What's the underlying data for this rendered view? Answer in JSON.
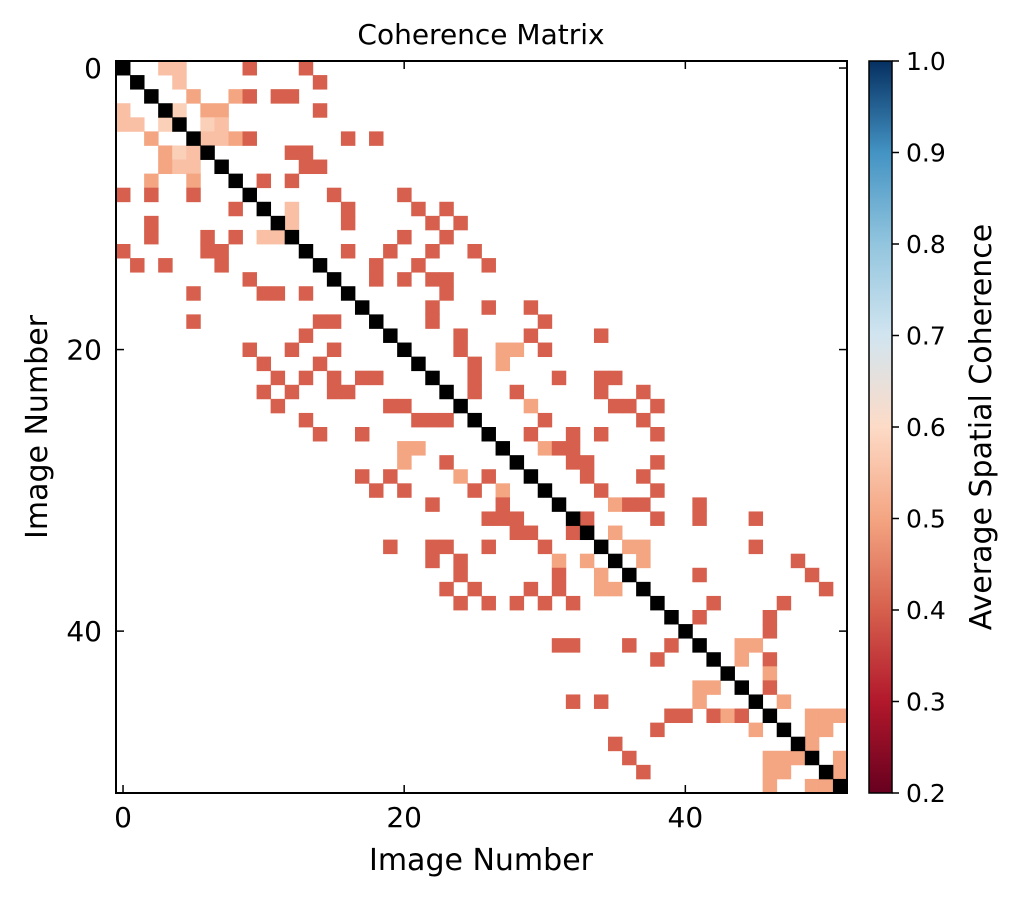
{
  "chart_data": {
    "type": "heatmap",
    "title": "Coherence Matrix",
    "xlabel": "Image Number",
    "ylabel": "Image Number",
    "n": 52,
    "x_ticks": [
      0,
      20,
      40
    ],
    "y_ticks": [
      0,
      20,
      40
    ],
    "colorbar": {
      "label": "Average Spatial Coherence",
      "range": [
        0.2,
        1.0
      ],
      "ticks": [
        "0.2",
        "0.3",
        "0.4",
        "0.5",
        "0.6",
        "0.7",
        "0.8",
        "0.9",
        "1.0"
      ],
      "colors": {
        "0.2": "#67001f",
        "0.3": "#b2182b",
        "0.4": "#d6604d",
        "0.5": "#f4a582",
        "0.6": "#fddbc7",
        "0.7": "#d1e5f0",
        "0.8": "#92c5de",
        "0.9": "#4393c3",
        "1.0": "#053061"
      },
      "mask_above_threshold": 0.7,
      "mask_below_threshold": 0.2
    },
    "diagonal_color": "#000000",
    "cells_upper": [
      [
        0,
        3,
        0.55
      ],
      [
        0,
        4,
        0.55
      ],
      [
        0,
        9,
        0.4
      ],
      [
        0,
        13,
        0.4
      ],
      [
        1,
        4,
        0.55
      ],
      [
        1,
        14,
        0.4
      ],
      [
        2,
        5,
        0.5
      ],
      [
        2,
        8,
        0.5
      ],
      [
        2,
        9,
        0.4
      ],
      [
        2,
        11,
        0.4
      ],
      [
        2,
        12,
        0.4
      ],
      [
        3,
        4,
        0.58
      ],
      [
        3,
        6,
        0.5
      ],
      [
        3,
        7,
        0.5
      ],
      [
        3,
        14,
        0.4
      ],
      [
        4,
        6,
        0.58
      ],
      [
        4,
        7,
        0.55
      ],
      [
        5,
        6,
        0.55
      ],
      [
        5,
        7,
        0.55
      ],
      [
        5,
        8,
        0.5
      ],
      [
        5,
        9,
        0.4
      ],
      [
        5,
        16,
        0.4
      ],
      [
        5,
        18,
        0.4
      ],
      [
        6,
        12,
        0.4
      ],
      [
        6,
        13,
        0.4
      ],
      [
        7,
        13,
        0.4
      ],
      [
        7,
        14,
        0.4
      ],
      [
        8,
        10,
        0.4
      ],
      [
        8,
        12,
        0.4
      ],
      [
        9,
        15,
        0.4
      ],
      [
        9,
        20,
        0.4
      ],
      [
        10,
        12,
        0.55
      ],
      [
        10,
        16,
        0.4
      ],
      [
        10,
        21,
        0.4
      ],
      [
        10,
        23,
        0.4
      ],
      [
        11,
        12,
        0.55
      ],
      [
        11,
        16,
        0.4
      ],
      [
        11,
        22,
        0.4
      ],
      [
        11,
        24,
        0.4
      ],
      [
        12,
        20,
        0.4
      ],
      [
        12,
        23,
        0.4
      ],
      [
        13,
        16,
        0.4
      ],
      [
        13,
        19,
        0.4
      ],
      [
        13,
        22,
        0.4
      ],
      [
        13,
        25,
        0.4
      ],
      [
        14,
        18,
        0.4
      ],
      [
        14,
        21,
        0.4
      ],
      [
        14,
        26,
        0.4
      ],
      [
        15,
        18,
        0.4
      ],
      [
        15,
        20,
        0.4
      ],
      [
        15,
        22,
        0.4
      ],
      [
        15,
        23,
        0.4
      ],
      [
        16,
        23,
        0.4
      ],
      [
        17,
        22,
        0.4
      ],
      [
        17,
        26,
        0.4
      ],
      [
        17,
        29,
        0.4
      ],
      [
        18,
        22,
        0.4
      ],
      [
        18,
        30,
        0.4
      ],
      [
        19,
        24,
        0.4
      ],
      [
        19,
        29,
        0.4
      ],
      [
        19,
        34,
        0.4
      ],
      [
        20,
        24,
        0.4
      ],
      [
        20,
        27,
        0.5
      ],
      [
        20,
        28,
        0.5
      ],
      [
        20,
        30,
        0.4
      ],
      [
        21,
        25,
        0.4
      ],
      [
        21,
        27,
        0.5
      ],
      [
        22,
        25,
        0.4
      ],
      [
        22,
        31,
        0.4
      ],
      [
        22,
        34,
        0.4
      ],
      [
        22,
        35,
        0.4
      ],
      [
        23,
        25,
        0.4
      ],
      [
        23,
        28,
        0.4
      ],
      [
        23,
        34,
        0.4
      ],
      [
        23,
        37,
        0.4
      ],
      [
        24,
        29,
        0.5
      ],
      [
        24,
        35,
        0.4
      ],
      [
        24,
        36,
        0.4
      ],
      [
        24,
        38,
        0.4
      ],
      [
        25,
        30,
        0.4
      ],
      [
        25,
        37,
        0.4
      ],
      [
        26,
        29,
        0.4
      ],
      [
        26,
        32,
        0.4
      ],
      [
        26,
        34,
        0.4
      ],
      [
        26,
        38,
        0.4
      ],
      [
        27,
        30,
        0.5
      ],
      [
        27,
        31,
        0.4
      ],
      [
        27,
        32,
        0.4
      ],
      [
        28,
        32,
        0.4
      ],
      [
        28,
        33,
        0.4
      ],
      [
        28,
        38,
        0.4
      ],
      [
        29,
        33,
        0.4
      ],
      [
        29,
        37,
        0.4
      ],
      [
        30,
        34,
        0.4
      ],
      [
        30,
        38,
        0.4
      ],
      [
        31,
        35,
        0.5
      ],
      [
        31,
        36,
        0.4
      ],
      [
        31,
        37,
        0.4
      ],
      [
        31,
        41,
        0.4
      ],
      [
        32,
        33,
        0.4
      ],
      [
        32,
        38,
        0.4
      ],
      [
        32,
        41,
        0.4
      ],
      [
        32,
        45,
        0.4
      ],
      [
        33,
        35,
        0.5
      ],
      [
        34,
        36,
        0.5
      ],
      [
        34,
        37,
        0.5
      ],
      [
        34,
        45,
        0.4
      ],
      [
        35,
        37,
        0.5
      ],
      [
        35,
        48,
        0.4
      ],
      [
        36,
        41,
        0.4
      ],
      [
        36,
        49,
        0.4
      ],
      [
        37,
        50,
        0.4
      ],
      [
        38,
        42,
        0.4
      ],
      [
        38,
        47,
        0.4
      ],
      [
        39,
        41,
        0.4
      ],
      [
        39,
        46,
        0.4
      ],
      [
        40,
        46,
        0.4
      ],
      [
        41,
        44,
        0.5
      ],
      [
        41,
        45,
        0.5
      ],
      [
        42,
        44,
        0.5
      ],
      [
        42,
        46,
        0.4
      ],
      [
        43,
        46,
        0.5
      ],
      [
        44,
        46,
        0.4
      ],
      [
        45,
        47,
        0.5
      ],
      [
        46,
        49,
        0.5
      ],
      [
        46,
        50,
        0.5
      ],
      [
        46,
        51,
        0.5
      ],
      [
        47,
        49,
        0.5
      ],
      [
        47,
        50,
        0.5
      ],
      [
        48,
        49,
        0.5
      ],
      [
        49,
        51,
        0.5
      ],
      [
        50,
        51,
        0.5
      ]
    ]
  }
}
